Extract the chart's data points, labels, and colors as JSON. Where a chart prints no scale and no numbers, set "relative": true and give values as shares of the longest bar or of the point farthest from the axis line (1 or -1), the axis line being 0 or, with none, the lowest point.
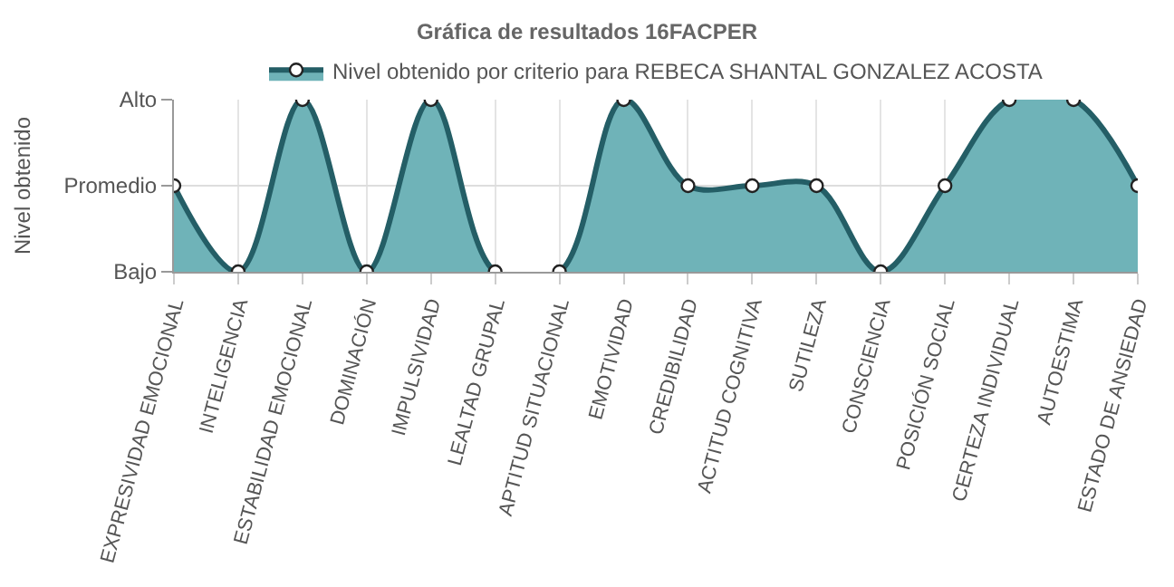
{
  "chart_data": {
    "type": "area",
    "title": "Gráfica de resultados 16FACPER",
    "ylabel": "Nivel obtenido",
    "categories": [
      "EXPRESIVIDAD EMOCIONAL",
      "INTELIGENCIA",
      "ESTABILIDAD EMOCIONAL",
      "DOMINACIÓN",
      "IMPULSIVIDAD",
      "LEALTAD GRUPAL",
      "APTITUD SITUACIONAL",
      "EMOTIVIDAD",
      "CREDIBILIDAD",
      "ACTITUD COGNITIVA",
      "SUTILEZA",
      "CONSCIENCIA",
      "POSICIÓN SOCIAL",
      "CERTEZA INDIVIDUAL",
      "AUTOESTIMA",
      "ESTADO DE ANSIEDAD"
    ],
    "series": [
      {
        "name": "Nivel obtenido por criterio para REBECA SHANTAL GONZALEZ ACOSTA",
        "color": "#245e66",
        "values": [
          0.5,
          0,
          1,
          0,
          1,
          0,
          0,
          1,
          0.5,
          0.5,
          0.5,
          0,
          0.5,
          1,
          1,
          0.5
        ]
      }
    ],
    "relative": true,
    "y_categories": [
      "Alto",
      "Promedio",
      "Bajo"
    ],
    "grid": true,
    "legend": "top",
    "marker": "circle",
    "line_style": "solid"
  }
}
